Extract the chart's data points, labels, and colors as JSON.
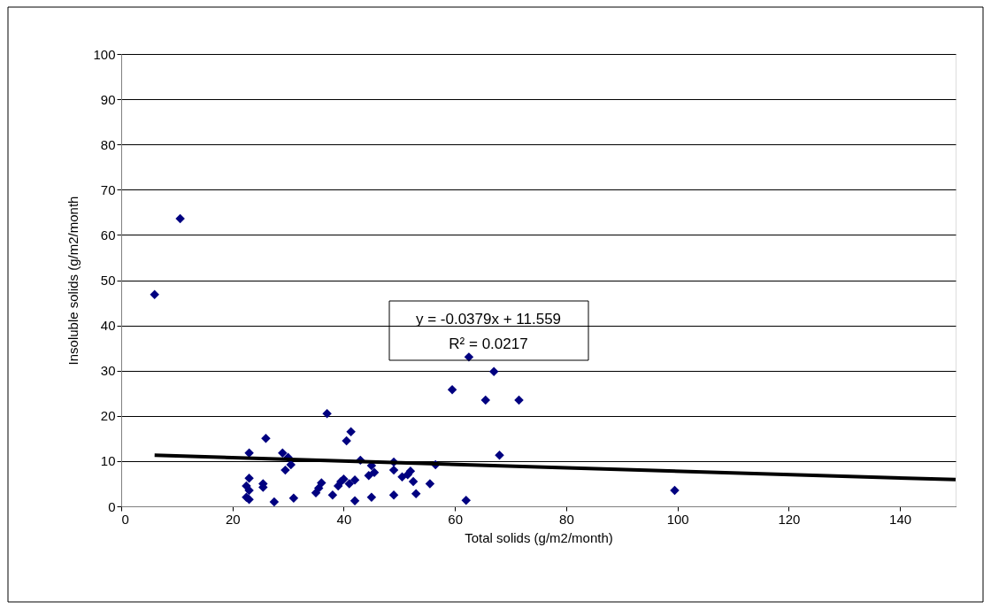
{
  "chart_data": {
    "type": "scatter",
    "xlabel": "Total solids (g/m2/month)",
    "ylabel": "Insoluble solids  (g/m2/month",
    "xlim": [
      0,
      150
    ],
    "ylim": [
      0,
      100
    ],
    "xticks": [
      0,
      20,
      40,
      60,
      80,
      100,
      120,
      140
    ],
    "yticks": [
      0,
      10,
      20,
      30,
      40,
      50,
      60,
      70,
      80,
      90,
      100
    ],
    "grid": "y",
    "marker": "diamond",
    "annotations": [
      "y = -0.0379x + 11.559",
      "R² = 0.0217"
    ],
    "series": [
      {
        "color": "#000080",
        "x": [
          6,
          10.6,
          22.5,
          22.5,
          23,
          23,
          23,
          23,
          25.5,
          25.5,
          26,
          27.5,
          29,
          29.5,
          30,
          30.5,
          31,
          35,
          35.5,
          36,
          37,
          38,
          39,
          39.5,
          40,
          40.5,
          41,
          41.3,
          42,
          42,
          43,
          44.5,
          45,
          45.5,
          45,
          49,
          49,
          49,
          50.5,
          51.5,
          52,
          52.5,
          53,
          55.5,
          56.5,
          59.5,
          62,
          62.5,
          65.5,
          67,
          68,
          71.5,
          99.5
        ],
        "values": [
          46.8,
          63.6,
          4.5,
          2,
          6.2,
          1.5,
          3.5,
          11.8,
          5,
          4.2,
          15,
          1,
          11.8,
          8,
          10.8,
          9.2,
          1.8,
          3,
          4,
          5.2,
          20.5,
          2.5,
          4.5,
          5.5,
          6,
          14.5,
          5,
          16.5,
          5.8,
          1.2,
          10.2,
          6.8,
          9,
          7.5,
          2,
          9.8,
          8,
          2.5,
          6.5,
          7,
          7.8,
          5.5,
          2.8,
          5,
          9.2,
          25.8,
          1.3,
          33,
          23.5,
          29.8,
          11.3,
          23.5,
          3.5
        ]
      },
      {
        "type": "line",
        "color": "#000000",
        "marker": "none",
        "x": [
          6,
          150
        ],
        "values": [
          11.3,
          5.9
        ]
      }
    ]
  }
}
